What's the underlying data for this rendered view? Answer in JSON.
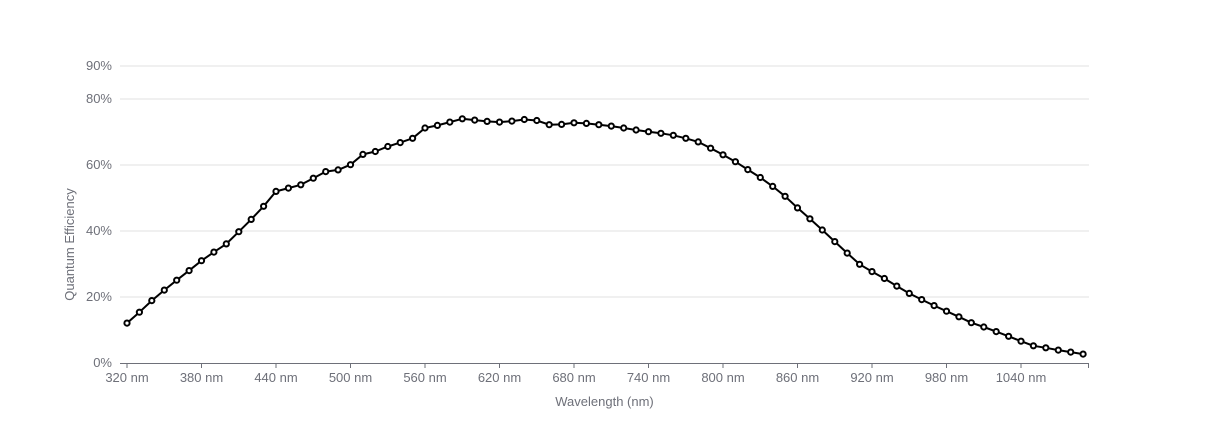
{
  "chart_data": {
    "type": "line",
    "xlabel": "Wavelength (nm)",
    "ylabel": "Quantum Efficiency",
    "xlim": [
      320,
      1090
    ],
    "ylim": [
      0,
      90
    ],
    "grid": true,
    "x_ticks": [
      320,
      380,
      440,
      500,
      560,
      620,
      680,
      740,
      800,
      860,
      920,
      980,
      1040
    ],
    "x_tick_labels": [
      "320 nm",
      "380 nm",
      "440 nm",
      "500 nm",
      "560 nm",
      "620 nm",
      "680 nm",
      "740 nm",
      "800 nm",
      "860 nm",
      "920 nm",
      "980 nm",
      "1040 nm"
    ],
    "y_ticks": [
      0,
      20,
      40,
      60,
      80,
      90
    ],
    "y_tick_labels": [
      "0%",
      "20%",
      "40%",
      "60%",
      "80%",
      "90%"
    ],
    "colors": {
      "series": "#000000",
      "grid": "#e0e0e0",
      "axis": "#6e7079"
    },
    "series": [
      {
        "x": [
          320,
          330,
          340,
          350,
          360,
          370,
          380,
          390,
          400,
          410,
          420,
          430,
          440,
          450,
          460,
          470,
          480,
          490,
          500,
          510,
          520,
          530,
          540,
          550,
          560,
          570,
          580,
          590,
          600,
          610,
          620,
          630,
          640,
          650,
          660,
          670,
          680,
          690,
          700,
          710,
          720,
          730,
          740,
          750,
          760,
          770,
          780,
          790,
          800,
          810,
          820,
          830,
          840,
          850,
          860,
          870,
          880,
          890,
          900,
          910,
          920,
          930,
          940,
          950,
          960,
          970,
          980,
          990,
          1000,
          1010,
          1020,
          1030,
          1040,
          1050,
          1060,
          1070,
          1080,
          1090
        ],
        "y": [
          12.1,
          15.4,
          18.9,
          22.1,
          25.1,
          28.0,
          31.0,
          33.6,
          36.1,
          39.8,
          43.5,
          47.5,
          52.0,
          53.0,
          54.0,
          56.0,
          58.0,
          58.5,
          60.1,
          63.2,
          64.1,
          65.6,
          66.8,
          68.1,
          71.2,
          72.0,
          73.0,
          74.0,
          73.6,
          73.2,
          73.0,
          73.3,
          73.8,
          73.5,
          72.2,
          72.3,
          72.8,
          72.6,
          72.2,
          71.8,
          71.2,
          70.6,
          70.1,
          69.6,
          69.0,
          68.1,
          67.0,
          65.1,
          63.1,
          61.0,
          58.6,
          56.2,
          53.5,
          50.5,
          47.0,
          43.7,
          40.3,
          36.8,
          33.3,
          29.9,
          27.7,
          25.6,
          23.3,
          21.1,
          19.2,
          17.4,
          15.7,
          14.0,
          12.2,
          10.9,
          9.5,
          8.1,
          6.6,
          5.2,
          4.6,
          3.9,
          3.3,
          2.7
        ]
      }
    ]
  }
}
